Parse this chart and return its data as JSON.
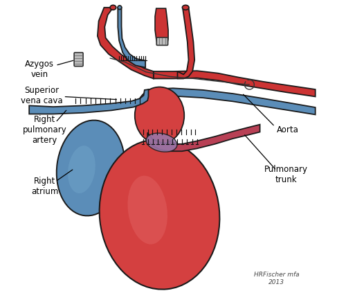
{
  "title": "",
  "background_color": "#ffffff",
  "labels": {
    "azygos_vein": "Azygos\nvein",
    "superior_vena_cava": "Superior\nvena cava",
    "right_pulmonary_artery": "Right\npulmonary\nartery",
    "right_atrium": "Right\natrium",
    "aorta": "Aorta",
    "pulmonary_trunk": "Pulmonary\ntrunk"
  },
  "colors": {
    "blue_fill": "#5b8db8",
    "blue_dark": "#3a6d9e",
    "red_fill": "#cc3333",
    "red_heart": "#d44040",
    "red_light": "#e06060",
    "outline": "#1a1a1a",
    "purple_fill": "#9977aa",
    "grey_clamp": "#bbbbbb",
    "white": "#ffffff"
  },
  "signature": "HRFischer mfa\n2013",
  "figsize": [
    5.0,
    4.33
  ],
  "dpi": 100
}
